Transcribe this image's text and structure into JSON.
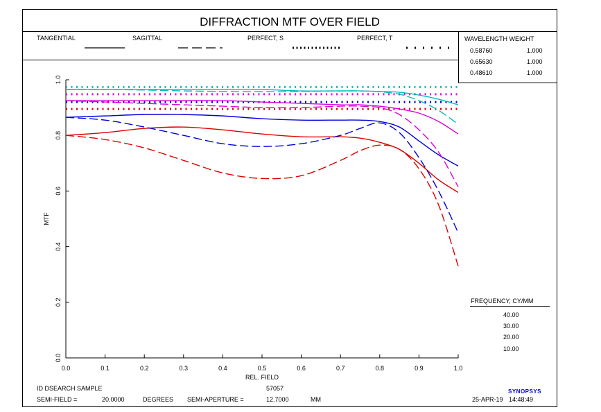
{
  "title": "DIFFRACTION MTF OVER FIELD",
  "legend": {
    "tangential": "TANGENTIAL",
    "sagittal": "SAGITTAL",
    "perfect_s": "PERFECT, S",
    "perfect_t": "PERFECT, T"
  },
  "wavelengths": {
    "header": "WAVELENGTH   WEIGHT",
    "rows": [
      {
        "wavelength": "0.58760",
        "weight": "1.000"
      },
      {
        "wavelength": "0.65630",
        "weight": "1.000"
      },
      {
        "wavelength": "0.48610",
        "weight": "1.000"
      }
    ]
  },
  "frequency": {
    "header": "FREQUENCY,    CY/MM",
    "items": [
      {
        "value": "40.00",
        "color": "#dd0000"
      },
      {
        "value": "30.00",
        "color": "#0000dd"
      },
      {
        "value": "20.00",
        "color": "#dd00dd"
      },
      {
        "value": "10.00",
        "color": "#00bbbb"
      }
    ]
  },
  "footer": {
    "id_label": "ID DSEARCH SAMPLE",
    "id_number": "57057",
    "semi_field_label": "SEMI-FIELD =",
    "semi_field_value": "20.0000",
    "semi_field_unit": "DEGREES",
    "semi_aperture_label": "SEMI-APERTURE =",
    "semi_aperture_value": "12.7000",
    "semi_aperture_unit": "MM",
    "date": "25-APR-19",
    "time": "14:48:49",
    "logo": "SYNOPSYS"
  },
  "chart_data": {
    "type": "line",
    "xlabel": "REL. FIELD",
    "ylabel": "MTF",
    "xlim": [
      0,
      1
    ],
    "ylim": [
      0,
      1
    ],
    "xticks": [
      "0.0",
      "0.1",
      "0.2",
      "0.3",
      "0.4",
      "0.5",
      "0.6",
      "0.7",
      "0.8",
      "0.9",
      "1.0"
    ],
    "yticks": [
      "0.0",
      "0.2",
      "0.4",
      "0.6",
      "0.8",
      "1.0"
    ],
    "x": [
      0,
      0.1,
      0.2,
      0.3,
      0.4,
      0.5,
      0.6,
      0.7,
      0.75,
      0.8,
      0.85,
      0.9,
      0.95,
      1.0
    ],
    "series": [
      {
        "frequency": "40.00",
        "kind": "tangential",
        "color": "#dd0000",
        "values": [
          0.8,
          0.81,
          0.825,
          0.83,
          0.82,
          0.805,
          0.795,
          0.795,
          0.79,
          0.775,
          0.75,
          0.7,
          0.64,
          0.595
        ]
      },
      {
        "frequency": "40.00",
        "kind": "sagittal",
        "color": "#dd0000",
        "values": [
          0.8,
          0.785,
          0.755,
          0.71,
          0.665,
          0.645,
          0.655,
          0.71,
          0.745,
          0.765,
          0.75,
          0.68,
          0.55,
          0.33
        ]
      },
      {
        "frequency": "30.00",
        "kind": "tangential",
        "color": "#0000dd",
        "values": [
          0.865,
          0.87,
          0.875,
          0.875,
          0.87,
          0.86,
          0.855,
          0.855,
          0.855,
          0.85,
          0.83,
          0.78,
          0.73,
          0.69
        ]
      },
      {
        "frequency": "30.00",
        "kind": "sagittal",
        "color": "#0000dd",
        "values": [
          0.865,
          0.855,
          0.83,
          0.8,
          0.77,
          0.76,
          0.77,
          0.8,
          0.825,
          0.845,
          0.81,
          0.72,
          0.6,
          0.45
        ]
      },
      {
        "frequency": "20.00",
        "kind": "tangential",
        "color": "#dd00dd",
        "values": [
          0.925,
          0.925,
          0.925,
          0.925,
          0.925,
          0.92,
          0.915,
          0.91,
          0.91,
          0.905,
          0.895,
          0.88,
          0.85,
          0.805
        ]
      },
      {
        "frequency": "20.00",
        "kind": "sagittal",
        "color": "#dd00dd",
        "values": [
          0.925,
          0.92,
          0.915,
          0.91,
          0.905,
          0.9,
          0.9,
          0.905,
          0.905,
          0.9,
          0.875,
          0.82,
          0.74,
          0.615
        ]
      },
      {
        "frequency": "10.00",
        "kind": "tangential",
        "color": "#00bbbb",
        "values": [
          0.965,
          0.965,
          0.965,
          0.965,
          0.965,
          0.965,
          0.96,
          0.96,
          0.96,
          0.958,
          0.955,
          0.945,
          0.93,
          0.91
        ]
      },
      {
        "frequency": "10.00",
        "kind": "sagittal",
        "color": "#00bbbb",
        "values": [
          0.965,
          0.965,
          0.963,
          0.96,
          0.958,
          0.957,
          0.958,
          0.96,
          0.96,
          0.957,
          0.948,
          0.925,
          0.89,
          0.84
        ]
      }
    ],
    "perfect": [
      {
        "frequency": "40.00",
        "color": "#dd0000",
        "value": 0.895
      },
      {
        "frequency": "30.00",
        "color": "#0000dd",
        "value": 0.92
      },
      {
        "frequency": "20.00",
        "color": "#dd00dd",
        "value": 0.948
      },
      {
        "frequency": "10.00",
        "color": "#00bbbb",
        "value": 0.974
      }
    ]
  }
}
